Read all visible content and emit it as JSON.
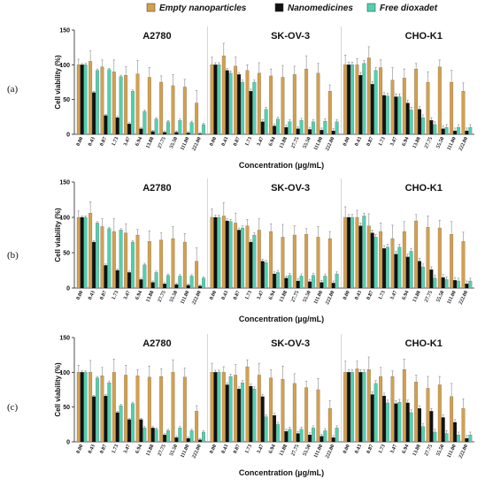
{
  "legend": [
    {
      "name": "Empty nanoparticles",
      "color": "#D4A04C"
    },
    {
      "name": "Nanomedicines",
      "color": "#111111"
    },
    {
      "name": "Free dioxadet",
      "color": "#4FD1B0"
    }
  ],
  "chart_data": [
    {
      "type": "bar",
      "panel_label": "(a)",
      "ylabel": "Cell viability (%)",
      "xlabel": "Concentration (µg/mL)",
      "ylim": [
        0,
        150
      ],
      "yticks": [
        "0",
        "50",
        "100",
        "150"
      ],
      "groups": [
        {
          "title": "A2780",
          "categories": [
            "0.00",
            "0.43",
            "0.87",
            "1.73",
            "3.47",
            "6.94",
            "13.88",
            "27.75",
            "55.50",
            "111.00",
            "222.00"
          ],
          "series": [
            {
              "name": "Empty nanoparticles",
              "values": [
                100,
                105,
                97,
                90,
                85,
                87,
                82,
                75,
                70,
                68,
                45
              ]
            },
            {
              "name": "Nanomedicines",
              "values": [
                100,
                60,
                27,
                24,
                15,
                8,
                4,
                3,
                3,
                2,
                1
              ]
            },
            {
              "name": "Free dioxadet",
              "values": [
                100,
                92,
                93,
                83,
                62,
                33,
                22,
                18,
                20,
                17,
                14
              ]
            }
          ]
        },
        {
          "title": "SK-OV-3",
          "categories": [
            "0.00",
            "0.43",
            "0.87",
            "1.73",
            "3.47",
            "6.94",
            "13.88",
            "27.75",
            "55.50",
            "111.00",
            "222.00"
          ],
          "series": [
            {
              "name": "Empty nanoparticles",
              "values": [
                100,
                113,
                98,
                92,
                88,
                84,
                82,
                86,
                94,
                88,
                62
              ]
            },
            {
              "name": "Nanomedicines",
              "values": [
                100,
                92,
                86,
                62,
                18,
                12,
                10,
                8,
                7,
                6,
                5
              ]
            },
            {
              "name": "Free dioxadet",
              "values": [
                100,
                88,
                75,
                75,
                36,
                22,
                18,
                20,
                18,
                19,
                18
              ]
            }
          ]
        },
        {
          "title": "CHO-K1",
          "categories": [
            "0.00",
            "0.43",
            "0.87",
            "1.73",
            "3.47",
            "6.94",
            "13.88",
            "27.75",
            "55.50",
            "111.00",
            "222.00"
          ],
          "series": [
            {
              "name": "Empty nanoparticles",
              "values": [
                100,
                100,
                110,
                96,
                78,
                81,
                94,
                75,
                97,
                75,
                62
              ]
            },
            {
              "name": "Nanomedicines",
              "values": [
                100,
                85,
                72,
                56,
                54,
                45,
                36,
                20,
                8,
                5,
                5
              ]
            },
            {
              "name": "Free dioxadet",
              "values": [
                100,
                102,
                92,
                55,
                54,
                35,
                24,
                14,
                10,
                10,
                10
              ]
            }
          ]
        }
      ]
    },
    {
      "type": "bar",
      "panel_label": "(b)",
      "ylabel": "Cell viability (%)",
      "xlabel": "Concentration (µg/mL)",
      "ylim": [
        0,
        150
      ],
      "yticks": [
        "0",
        "50",
        "100",
        "150"
      ],
      "groups": [
        {
          "title": "A2780",
          "categories": [
            "0.00",
            "0.43",
            "0.87",
            "1.73",
            "3.47",
            "6.94",
            "13.88",
            "27.75",
            "55.50",
            "111.00",
            "222.00"
          ],
          "series": [
            {
              "name": "Empty nanoparticles",
              "values": [
                100,
                106,
                87,
                80,
                78,
                75,
                66,
                68,
                70,
                65,
                38
              ]
            },
            {
              "name": "Nanomedicines",
              "values": [
                100,
                65,
                32,
                25,
                22,
                12,
                8,
                6,
                5,
                4,
                3
              ]
            },
            {
              "name": "Free dioxadet",
              "values": [
                100,
                92,
                84,
                82,
                65,
                33,
                22,
                18,
                17,
                17,
                14
              ]
            }
          ]
        },
        {
          "title": "SK-OV-3",
          "categories": [
            "0.00",
            "0.43",
            "0.87",
            "1.73",
            "3.47",
            "6.94",
            "13.88",
            "27.75",
            "55.50",
            "111.00",
            "222.00"
          ],
          "series": [
            {
              "name": "Empty nanoparticles",
              "values": [
                100,
                102,
                92,
                88,
                82,
                80,
                72,
                75,
                76,
                72,
                70
              ]
            },
            {
              "name": "Nanomedicines",
              "values": [
                100,
                95,
                82,
                65,
                38,
                20,
                14,
                10,
                9,
                8,
                7
              ]
            },
            {
              "name": "Free dioxadet",
              "values": [
                100,
                94,
                85,
                75,
                36,
                22,
                18,
                17,
                18,
                17,
                20
              ]
            }
          ]
        },
        {
          "title": "CHO-K1",
          "categories": [
            "0.00",
            "0.43",
            "0.87",
            "1.73",
            "3.47",
            "6.94",
            "13.88",
            "27.75",
            "55.50",
            "111.00",
            "222.00"
          ],
          "series": [
            {
              "name": "Empty nanoparticles",
              "values": [
                100,
                100,
                88,
                80,
                70,
                80,
                95,
                86,
                85,
                76,
                66
              ]
            },
            {
              "name": "Nanomedicines",
              "values": [
                100,
                88,
                78,
                56,
                48,
                44,
                38,
                26,
                15,
                11,
                6
              ]
            },
            {
              "name": "Free dioxadet",
              "values": [
                100,
                102,
                72,
                58,
                58,
                52,
                30,
                14,
                12,
                10,
                10
              ]
            }
          ]
        }
      ]
    },
    {
      "type": "bar",
      "panel_label": "(c)",
      "ylabel": "Cell viability (%)",
      "xlabel": "Concentration (µg/mL)",
      "ylim": [
        0,
        150
      ],
      "yticks": [
        "0",
        "50",
        "100",
        "150"
      ],
      "groups": [
        {
          "title": "A2780",
          "categories": [
            "0.00",
            "0.43",
            "0.87",
            "1.73",
            "3.47",
            "6.94",
            "13.88",
            "27.75",
            "55.50",
            "111.00",
            "222.00"
          ],
          "series": [
            {
              "name": "Empty nanoparticles",
              "values": [
                100,
                100,
                95,
                100,
                96,
                95,
                93,
                94,
                100,
                93,
                44
              ]
            },
            {
              "name": "Nanomedicines",
              "values": [
                100,
                65,
                66,
                42,
                32,
                32,
                20,
                10,
                6,
                5,
                3
              ]
            },
            {
              "name": "Free dioxadet",
              "values": [
                100,
                92,
                85,
                52,
                55,
                20,
                18,
                16,
                20,
                16,
                14
              ]
            }
          ]
        },
        {
          "title": "SK-OV-3",
          "categories": [
            "0.00",
            "0.43",
            "0.87",
            "1.73",
            "3.47",
            "6.94",
            "13.88",
            "27.75",
            "55.50",
            "111.00",
            "222.00"
          ],
          "series": [
            {
              "name": "Empty nanoparticles",
              "values": [
                100,
                100,
                96,
                108,
                96,
                92,
                90,
                84,
                78,
                75,
                48
              ]
            },
            {
              "name": "Nanomedicines",
              "values": [
                100,
                82,
                76,
                80,
                65,
                38,
                15,
                12,
                10,
                8,
                6
              ]
            },
            {
              "name": "Free dioxadet",
              "values": [
                100,
                94,
                85,
                76,
                36,
                25,
                18,
                18,
                20,
                16,
                20
              ]
            }
          ]
        },
        {
          "title": "CHO-K1",
          "categories": [
            "0.00",
            "0.43",
            "0.87",
            "1.73",
            "3.47",
            "6.94",
            "13.88",
            "27.75",
            "55.50",
            "111.00",
            "222.00"
          ],
          "series": [
            {
              "name": "Empty nanoparticles",
              "values": [
                100,
                105,
                104,
                94,
                94,
                104,
                86,
                77,
                82,
                65,
                48
              ]
            },
            {
              "name": "Nanomedicines",
              "values": [
                100,
                100,
                68,
                66,
                55,
                56,
                48,
                44,
                35,
                28,
                5
              ]
            },
            {
              "name": "Free dioxadet",
              "values": [
                100,
                100,
                84,
                56,
                57,
                42,
                22,
                14,
                12,
                10,
                10
              ]
            }
          ]
        }
      ]
    }
  ]
}
